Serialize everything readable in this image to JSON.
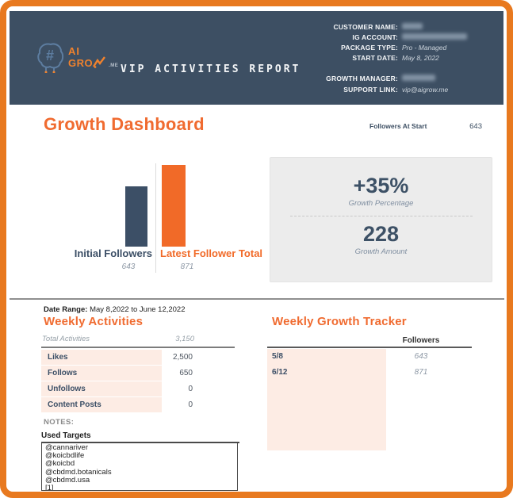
{
  "colors": {
    "frame": "#e8791f",
    "header_bg": "#3d4f63",
    "accent_orange": "#f06b30",
    "navy": "#3c4f66",
    "peach_row": "#fdece4",
    "growth_box_bg": "#ececec"
  },
  "header": {
    "title": "VIP ACTIVITIES REPORT",
    "logo": {
      "line1": "AI",
      "line2": "GRO",
      "suffix": ".ME"
    },
    "info": [
      {
        "label": "CUSTOMER NAME:",
        "value": "",
        "redacted": true
      },
      {
        "label": "IG ACCOUNT:",
        "value": "",
        "redacted": true
      },
      {
        "label": "PACKAGE TYPE:",
        "value": "Pro - Managed",
        "redacted": false
      },
      {
        "label": "START DATE:",
        "value": "May 8, 2022",
        "redacted": false
      },
      {
        "label": "GROWTH MANAGER:",
        "value": "",
        "redacted": true
      },
      {
        "label": "SUPPORT LINK:",
        "value": "vip@aigrow.me",
        "redacted": false
      }
    ]
  },
  "dashboard": {
    "title": "Growth Dashboard",
    "followers_at_start_label": "Followers At Start",
    "followers_at_start_value": "643"
  },
  "chart_data": {
    "type": "bar",
    "categories": [
      "Initial Followers",
      "Latest Follower Total"
    ],
    "values": [
      643,
      871
    ],
    "value_labels": [
      "643",
      "871"
    ],
    "colors": [
      "#3c4f66",
      "#f16a28"
    ],
    "title": "",
    "xlabel": "",
    "ylabel": "",
    "ylim": [
      0,
      871
    ],
    "grid": false,
    "legend": "none"
  },
  "growth_box": {
    "percentage": "+35%",
    "percentage_label": "Growth Percentage",
    "amount": "228",
    "amount_label": "Growth Amount"
  },
  "date_range": {
    "label": "Date Range:",
    "value": " May 8,2022 to June 12,2022"
  },
  "activities": {
    "title": "Weekly Activities",
    "total_label": "Total Activities",
    "total_value": "3,150",
    "rows": [
      {
        "label": "Likes",
        "value": "2,500"
      },
      {
        "label": "Follows",
        "value": "650"
      },
      {
        "label": "Unfollows",
        "value": "0"
      },
      {
        "label": "Content Posts",
        "value": "0"
      }
    ]
  },
  "tracker": {
    "title": "Weekly Growth Tracker",
    "column_header": "Followers",
    "rows": [
      {
        "date": "5/8",
        "value": "643"
      },
      {
        "date": "6/12",
        "value": "871"
      }
    ]
  },
  "notes": {
    "label": "NOTES:",
    "targets_title": "Used Targets",
    "targets": [
      "@cannariver",
      "@koicbdlife",
      "@koicbd",
      "@cbdmd.botanicals",
      "@cbdmd.usa",
      "[1]"
    ]
  }
}
